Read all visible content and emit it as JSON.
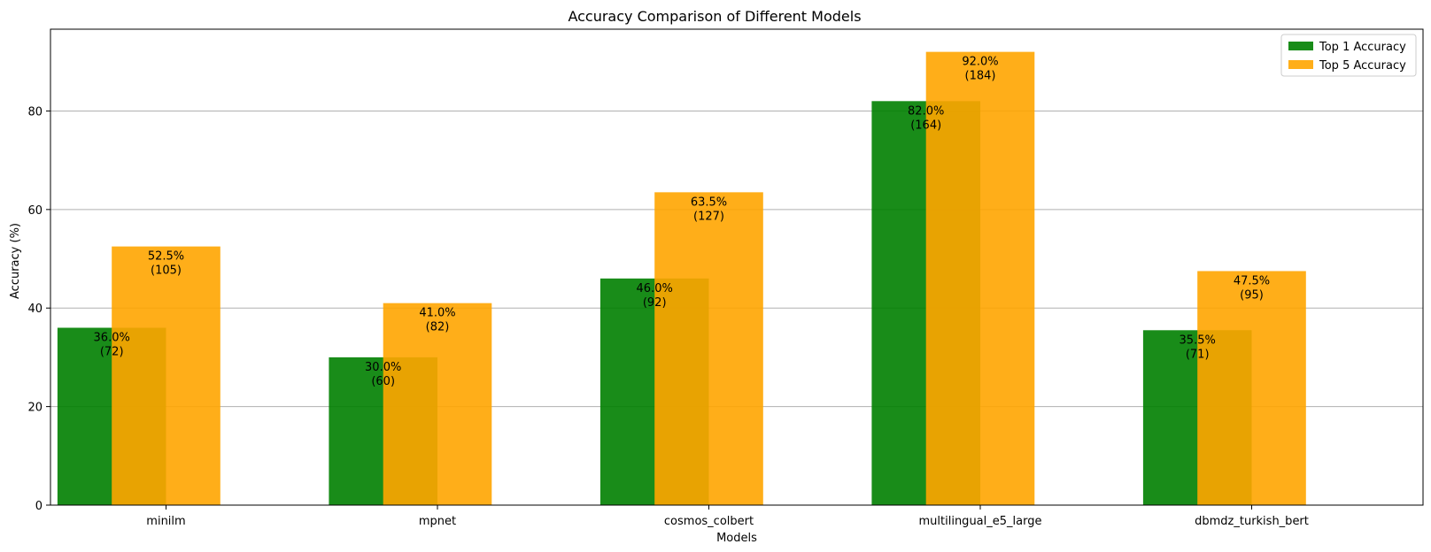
{
  "chart_data": {
    "type": "bar",
    "title": "Accuracy Comparison of Different Models",
    "xlabel": "Models",
    "ylabel": "Accuracy (%)",
    "categories": [
      "minilm",
      "mpnet",
      "cosmos_colbert",
      "multilingual_e5_large",
      "dbmdz_turkish_bert"
    ],
    "series": [
      {
        "name": "Top 1 Accuracy",
        "values": [
          36.0,
          30.0,
          46.0,
          82.0,
          35.5
        ],
        "labels": [
          [
            "36.0%",
            "(72)"
          ],
          [
            "30.0%",
            "(60)"
          ],
          [
            "46.0%",
            "(92)"
          ],
          [
            "82.0%",
            "(164)"
          ],
          [
            "35.5%",
            "(71)"
          ]
        ],
        "color": "#008000"
      },
      {
        "name": "Top 5 Accuracy",
        "values": [
          52.5,
          41.0,
          63.5,
          92.0,
          47.5
        ],
        "labels": [
          [
            "52.5%",
            "(105)"
          ],
          [
            "41.0%",
            "(82)"
          ],
          [
            "63.5%",
            "(127)"
          ],
          [
            "92.0%",
            "(184)"
          ],
          [
            "47.5%",
            "(95)"
          ]
        ],
        "color": "#FFA500"
      }
    ],
    "ylim": [
      0,
      96.6
    ],
    "yticks": [
      0,
      20,
      40,
      60,
      80
    ],
    "grid": "y",
    "legend": "top-right"
  }
}
